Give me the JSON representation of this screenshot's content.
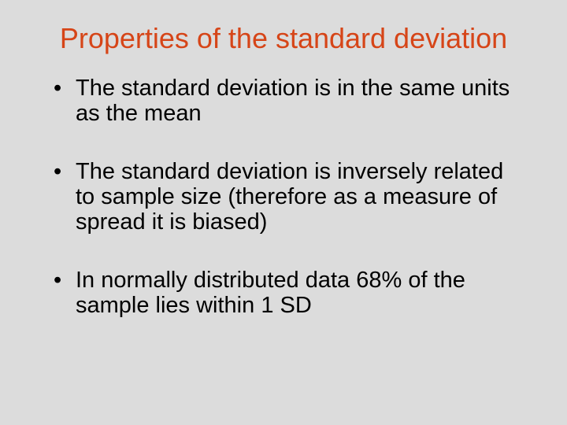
{
  "slide": {
    "title": "Properties of the standard deviation",
    "bullets": [
      "The standard deviation is in the same units as the mean",
      "The standard deviation is inversely related to sample size (therefore as a measure of spread it is biased)",
      "In normally distributed data 68% of the sample lies within 1 SD"
    ]
  },
  "styling": {
    "background_color": "#dcdcdc",
    "title_color": "#d64518",
    "title_fontsize": 36,
    "body_color": "#000000",
    "body_fontsize": 29,
    "font_family": "Verdana, Geneva, sans-serif",
    "slide_width": 720,
    "slide_height": 540
  }
}
